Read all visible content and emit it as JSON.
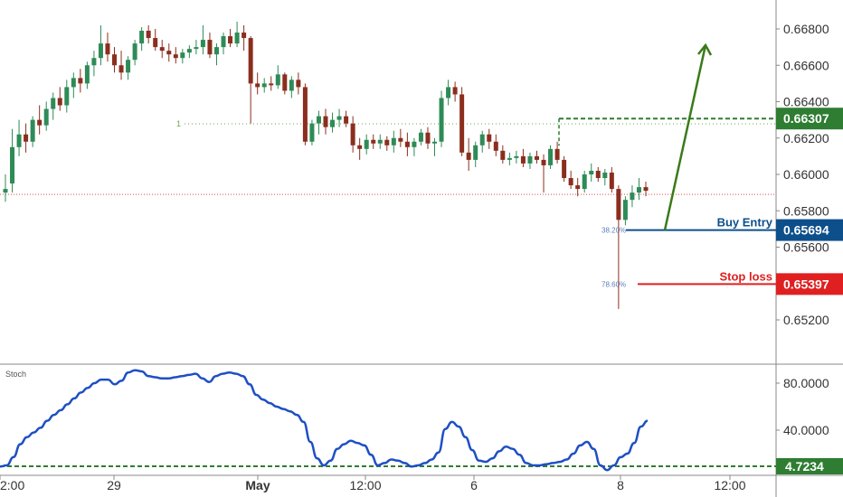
{
  "chart_data": [
    {
      "type": "candlestick",
      "x_ticks": [
        "2:00",
        "29",
        "May",
        "12:00",
        "6",
        "8",
        "12:00"
      ],
      "y_ticks": [
        "0.66800",
        "0.66600",
        "0.66400",
        "0.66200",
        "0.66000",
        "0.65800",
        "0.65600",
        "0.65400",
        "0.65200"
      ],
      "ylim": [
        0.651,
        0.669
      ],
      "grid": false,
      "candles": [
        [
          0.659,
          0.66,
          0.6585,
          0.6592
        ],
        [
          0.6595,
          0.6625,
          0.659,
          0.6615
        ],
        [
          0.6615,
          0.663,
          0.661,
          0.6622
        ],
        [
          0.6622,
          0.6628,
          0.6612,
          0.6618
        ],
        [
          0.6618,
          0.6632,
          0.6615,
          0.663
        ],
        [
          0.663,
          0.6638,
          0.6622,
          0.6627
        ],
        [
          0.6627,
          0.664,
          0.6624,
          0.6636
        ],
        [
          0.6636,
          0.6645,
          0.663,
          0.6642
        ],
        [
          0.6642,
          0.6648,
          0.6635,
          0.6638
        ],
        [
          0.6638,
          0.6652,
          0.6634,
          0.6648
        ],
        [
          0.6648,
          0.6656,
          0.6642,
          0.6653
        ],
        [
          0.6653,
          0.6658,
          0.6645,
          0.665
        ],
        [
          0.665,
          0.6662,
          0.6647,
          0.666
        ],
        [
          0.666,
          0.6668,
          0.6654,
          0.6664
        ],
        [
          0.6664,
          0.6682,
          0.666,
          0.6672
        ],
        [
          0.6672,
          0.6678,
          0.6662,
          0.6666
        ],
        [
          0.6666,
          0.667,
          0.6656,
          0.666
        ],
        [
          0.666,
          0.6668,
          0.6652,
          0.6656
        ],
        [
          0.6656,
          0.6665,
          0.6652,
          0.6663
        ],
        [
          0.6663,
          0.6674,
          0.666,
          0.6672
        ],
        [
          0.6672,
          0.6681,
          0.6668,
          0.6679
        ],
        [
          0.6679,
          0.6682,
          0.6672,
          0.6675
        ],
        [
          0.6675,
          0.668,
          0.6668,
          0.667
        ],
        [
          0.667,
          0.6674,
          0.6664,
          0.6668
        ],
        [
          0.6668,
          0.6672,
          0.6662,
          0.6666
        ],
        [
          0.6666,
          0.667,
          0.6661,
          0.6664
        ],
        [
          0.6664,
          0.6669,
          0.6661,
          0.6667
        ],
        [
          0.6667,
          0.6671,
          0.6664,
          0.6669
        ],
        [
          0.6669,
          0.6674,
          0.6666,
          0.667
        ],
        [
          0.667,
          0.6682,
          0.6666,
          0.6674
        ],
        [
          0.6674,
          0.6678,
          0.6664,
          0.6666
        ],
        [
          0.6666,
          0.6672,
          0.666,
          0.667
        ],
        [
          0.667,
          0.6678,
          0.6666,
          0.6676
        ],
        [
          0.6676,
          0.668,
          0.667,
          0.6672
        ],
        [
          0.6672,
          0.6684,
          0.667,
          0.6678
        ],
        [
          0.6678,
          0.6682,
          0.6668,
          0.6675
        ],
        [
          0.6675,
          0.6676,
          0.6628,
          0.665
        ],
        [
          0.665,
          0.6656,
          0.6644,
          0.6648
        ],
        [
          0.6648,
          0.6653,
          0.6645,
          0.665
        ],
        [
          0.665,
          0.6654,
          0.6646,
          0.6649
        ],
        [
          0.6649,
          0.666,
          0.6647,
          0.6655
        ],
        [
          0.6655,
          0.6656,
          0.6644,
          0.6646
        ],
        [
          0.6646,
          0.6654,
          0.6642,
          0.6652
        ],
        [
          0.6652,
          0.6656,
          0.6644,
          0.6648
        ],
        [
          0.6648,
          0.665,
          0.6616,
          0.6618
        ],
        [
          0.6618,
          0.663,
          0.6616,
          0.6628
        ],
        [
          0.6628,
          0.6635,
          0.6622,
          0.6632
        ],
        [
          0.6632,
          0.6636,
          0.6622,
          0.6626
        ],
        [
          0.6626,
          0.6634,
          0.6623,
          0.663
        ],
        [
          0.663,
          0.6636,
          0.6626,
          0.6632
        ],
        [
          0.6632,
          0.6635,
          0.6626,
          0.6628
        ],
        [
          0.6628,
          0.6632,
          0.6612,
          0.6616
        ],
        [
          0.6616,
          0.662,
          0.6608,
          0.6614
        ],
        [
          0.6614,
          0.6622,
          0.6611,
          0.6619
        ],
        [
          0.6619,
          0.6622,
          0.6614,
          0.6617
        ],
        [
          0.6617,
          0.6622,
          0.6614,
          0.6619
        ],
        [
          0.6619,
          0.6621,
          0.6613,
          0.6616
        ],
        [
          0.6616,
          0.6624,
          0.6612,
          0.662
        ],
        [
          0.662,
          0.6625,
          0.6615,
          0.6618
        ],
        [
          0.6618,
          0.6623,
          0.661,
          0.6615
        ],
        [
          0.6615,
          0.662,
          0.661,
          0.6618
        ],
        [
          0.6618,
          0.6625,
          0.6616,
          0.6623
        ],
        [
          0.6623,
          0.6626,
          0.6614,
          0.6617
        ],
        [
          0.6617,
          0.662,
          0.661,
          0.6618
        ],
        [
          0.6618,
          0.6646,
          0.6615,
          0.6642
        ],
        [
          0.6642,
          0.6652,
          0.6638,
          0.6648
        ],
        [
          0.6648,
          0.6651,
          0.664,
          0.6644
        ],
        [
          0.6644,
          0.6648,
          0.661,
          0.6612
        ],
        [
          0.6612,
          0.662,
          0.6602,
          0.6608
        ],
        [
          0.6608,
          0.6618,
          0.6604,
          0.6616
        ],
        [
          0.6616,
          0.6624,
          0.6612,
          0.6622
        ],
        [
          0.6622,
          0.6625,
          0.6614,
          0.6618
        ],
        [
          0.6618,
          0.6622,
          0.661,
          0.6613
        ],
        [
          0.6613,
          0.6616,
          0.6606,
          0.6608
        ],
        [
          0.6608,
          0.6612,
          0.6605,
          0.6609
        ],
        [
          0.6609,
          0.6613,
          0.6606,
          0.661
        ],
        [
          0.661,
          0.6614,
          0.6604,
          0.6606
        ],
        [
          0.6606,
          0.6612,
          0.6603,
          0.661
        ],
        [
          0.661,
          0.6613,
          0.6606,
          0.6608
        ],
        [
          0.6608,
          0.6611,
          0.659,
          0.6605
        ],
        [
          0.6605,
          0.6616,
          0.6603,
          0.6614
        ],
        [
          0.6614,
          0.6618,
          0.6606,
          0.6608
        ],
        [
          0.6608,
          0.661,
          0.6596,
          0.6598
        ],
        [
          0.6598,
          0.6602,
          0.6592,
          0.6594
        ],
        [
          0.6594,
          0.6598,
          0.6588,
          0.6592
        ],
        [
          0.6592,
          0.6602,
          0.659,
          0.66
        ],
        [
          0.66,
          0.6606,
          0.6596,
          0.6602
        ],
        [
          0.6602,
          0.6604,
          0.6596,
          0.6598
        ],
        [
          0.6598,
          0.6603,
          0.6594,
          0.6601
        ],
        [
          0.6601,
          0.6604,
          0.659,
          0.6592
        ],
        [
          0.6592,
          0.6594,
          0.6526,
          0.6575
        ],
        [
          0.6575,
          0.6588,
          0.6572,
          0.6586
        ],
        [
          0.6586,
          0.6594,
          0.6582,
          0.659
        ],
        [
          0.659,
          0.6598,
          0.6586,
          0.6593
        ],
        [
          0.6593,
          0.6596,
          0.6588,
          0.6591
        ]
      ],
      "levels": [
        {
          "label": "0.66307",
          "value": 0.66307,
          "color": "#2e7d32",
          "style": "dashed"
        },
        {
          "label": "0.65694",
          "value": 0.65694,
          "color": "#0d4f8b",
          "style": "solid",
          "note": "Buy Entry"
        },
        {
          "label": "0.65397",
          "value": 0.65397,
          "color": "#e02020",
          "style": "solid",
          "note": "Stop loss"
        }
      ],
      "fib_labels": {
        "level_1": "1",
        "level_382": "38.20%",
        "level_786": "78.60%"
      },
      "current_price_line": 0.6589,
      "projection_arrow": {
        "from": [
          0.65694
        ],
        "to": [
          0.6674
        ],
        "color": "#2e7d32"
      }
    },
    {
      "type": "line",
      "title": "Stoch",
      "y_ticks": [
        "80.0000",
        "40.0000"
      ],
      "ylim": [
        0,
        100
      ],
      "support_label": "4.7234",
      "support_value": 4.7234,
      "series": [
        {
          "values": [
            9,
            10,
            17,
            28,
            34,
            38,
            42,
            48,
            53,
            57,
            62,
            67,
            72,
            76,
            80,
            83,
            83,
            79,
            82,
            89,
            91,
            90,
            86,
            85,
            84,
            84,
            85,
            86,
            87,
            88,
            84,
            81,
            86,
            88,
            89,
            88,
            86,
            79,
            70,
            66,
            63,
            60,
            58,
            56,
            53,
            47,
            30,
            16,
            10,
            14,
            24,
            28,
            31,
            29,
            27,
            19,
            10,
            12,
            15,
            14,
            12,
            9,
            10,
            12,
            15,
            21,
            41,
            47,
            43,
            34,
            23,
            14,
            13,
            16,
            22,
            26,
            24,
            19,
            12,
            10,
            10,
            11,
            12,
            13,
            15,
            20,
            27,
            30,
            24,
            10,
            6,
            10,
            17,
            20,
            29,
            43,
            48
          ]
        }
      ],
      "color": "#1e4fc4"
    }
  ]
}
